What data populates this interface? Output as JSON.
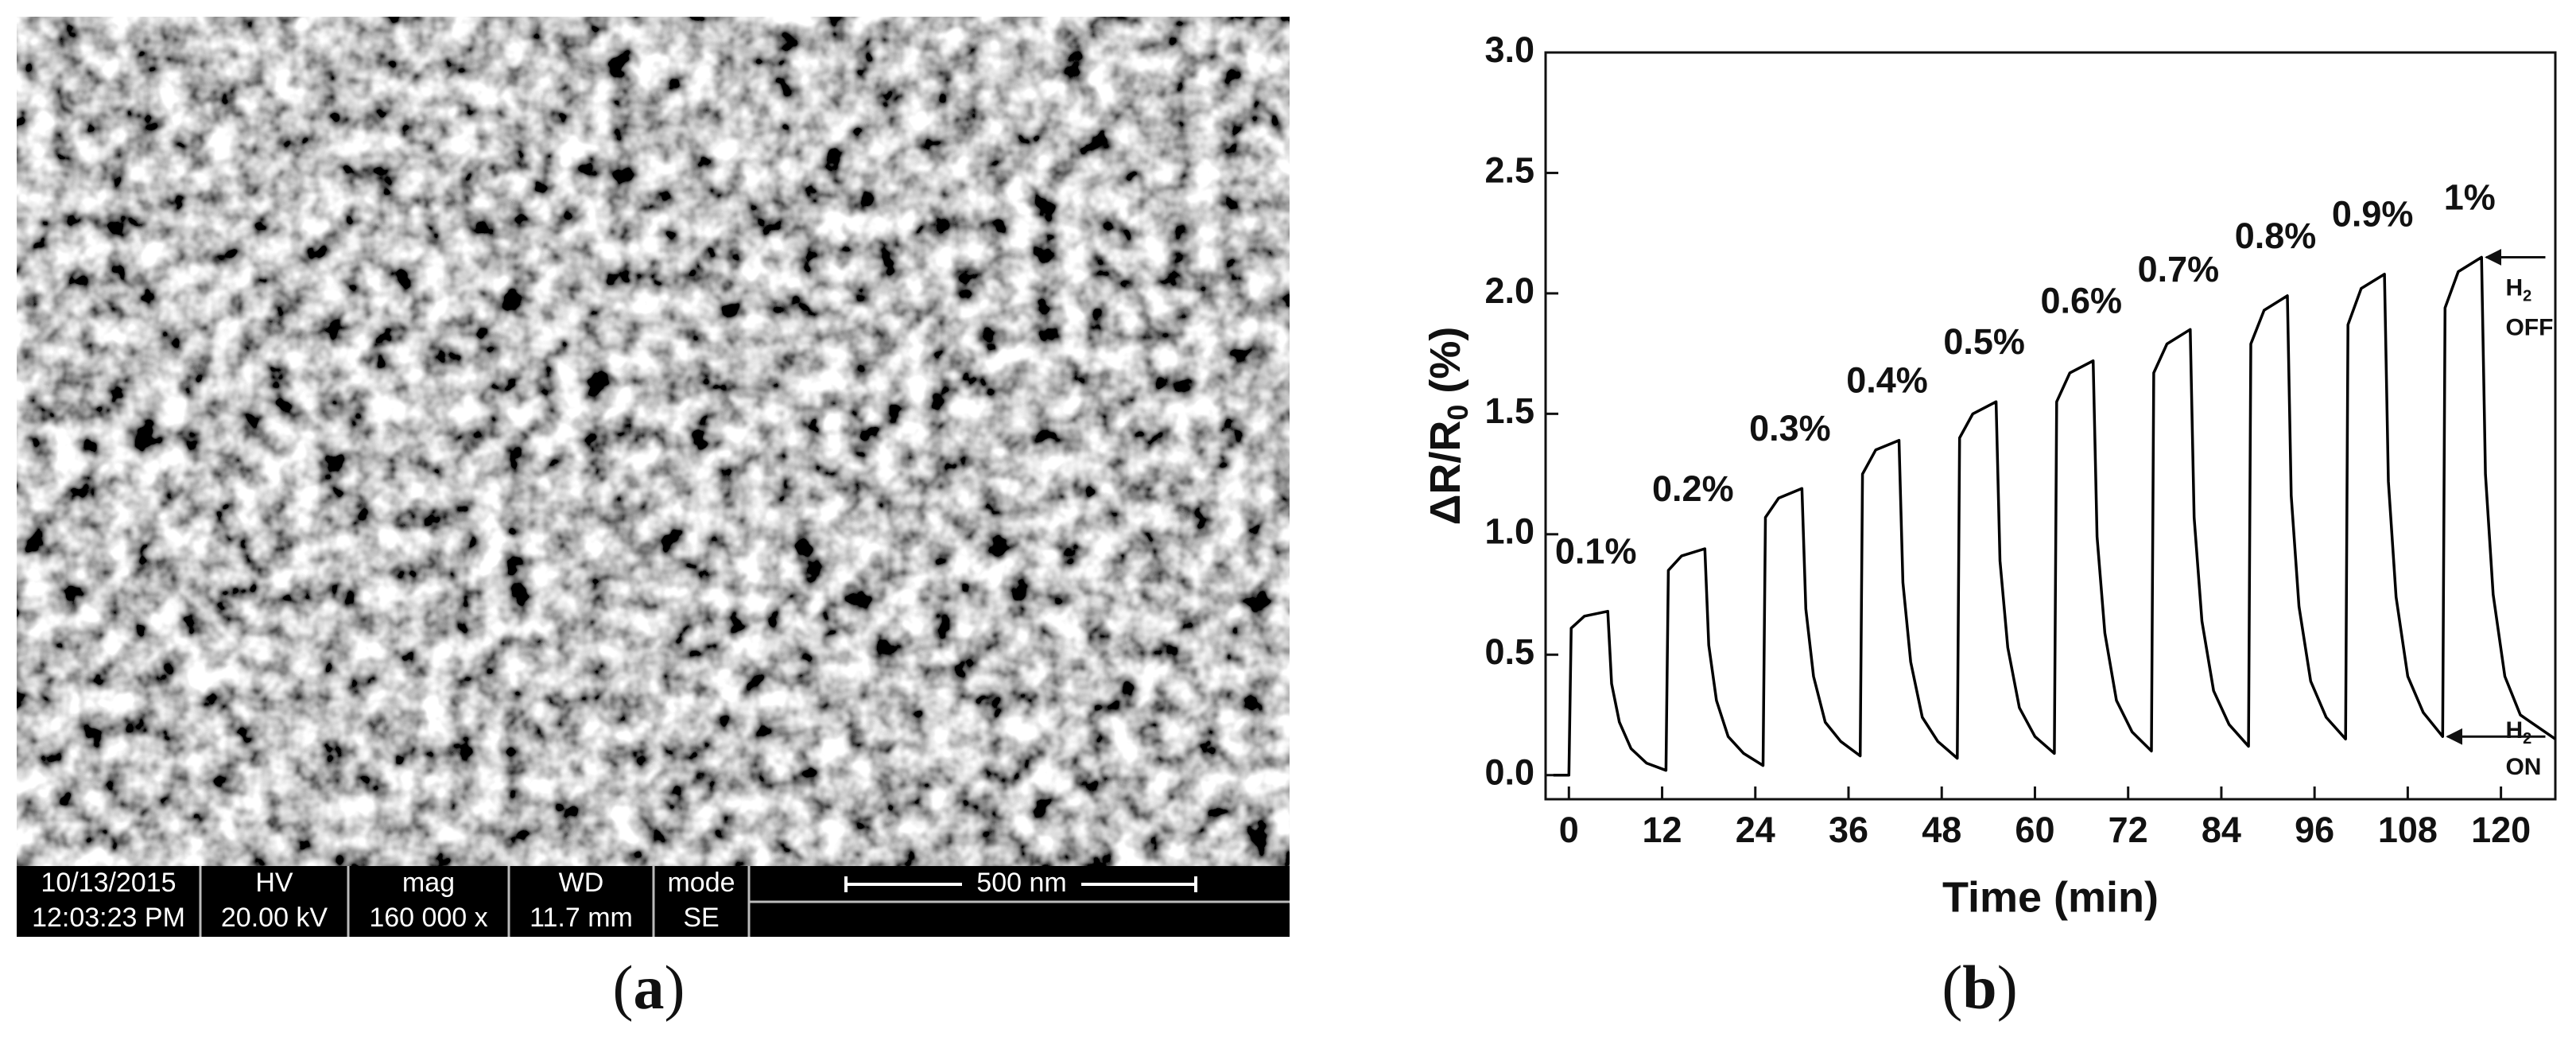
{
  "sem_image": {
    "info_bar": [
      {
        "top": "10/13/2015",
        "bottom": "12:03:23 PM"
      },
      {
        "top": "HV",
        "bottom": "20.00 kV"
      },
      {
        "top": "mag",
        "bottom": "160 000 x"
      },
      {
        "top": "WD",
        "bottom": "11.7 mm"
      },
      {
        "top": "mode",
        "bottom": "SE"
      }
    ],
    "scale_bar": "500 nm"
  },
  "captions": [
    {
      "open": "(",
      "letter": "a",
      "close": ")"
    },
    {
      "open": "(",
      "letter": "b",
      "close": ")"
    }
  ],
  "chart_data": {
    "type": "line",
    "xlabel": "Time (min)",
    "ylabel": {
      "main": "ΔR/R",
      "subscript": "0",
      "unit": "(%)"
    },
    "xlim": [
      -3,
      127
    ],
    "ylim": [
      -0.1,
      3.0
    ],
    "xticks": [
      0,
      12,
      24,
      36,
      48,
      60,
      72,
      84,
      96,
      108,
      120
    ],
    "yticks": [
      {
        "value": 0,
        "label": "0.0"
      },
      0.5,
      {
        "value": 1,
        "label": "1.0"
      },
      1.5,
      {
        "value": 2,
        "label": "2.0"
      },
      2.5,
      {
        "value": 3,
        "label": "3.0"
      }
    ],
    "color": "#000000",
    "x": [
      -2,
      0,
      0.3,
      2,
      5,
      5.5,
      6.5,
      8,
      10,
      12.5,
      12.8,
      14.5,
      17.5,
      18,
      19,
      20.5,
      22.5,
      25,
      25.3,
      27,
      30,
      30.5,
      31.5,
      33,
      35,
      37.5,
      37.8,
      39.5,
      42.5,
      43,
      44,
      45.5,
      47.5,
      50,
      50.3,
      52,
      55,
      55.5,
      56.5,
      58,
      60,
      62.5,
      62.8,
      64.5,
      67.5,
      68,
      69,
      70.5,
      72.5,
      75,
      75.3,
      77,
      80,
      80.5,
      81.5,
      83,
      85,
      87.5,
      87.8,
      89.5,
      92.5,
      93,
      94,
      95.5,
      97.5,
      100,
      100.3,
      102,
      105,
      105.5,
      106.5,
      108,
      110,
      112.5,
      112.8,
      114.5,
      117.5,
      118,
      119,
      120.5,
      122.5,
      127
    ],
    "values": [
      0,
      0,
      0.61,
      0.66,
      0.68,
      0.38,
      0.22,
      0.11,
      0.05,
      0.02,
      0.85,
      0.91,
      0.94,
      0.54,
      0.31,
      0.16,
      0.09,
      0.04,
      1.07,
      1.15,
      1.19,
      0.69,
      0.41,
      0.22,
      0.14,
      0.08,
      1.25,
      1.35,
      1.39,
      0.8,
      0.47,
      0.24,
      0.14,
      0.07,
      1.4,
      1.5,
      1.55,
      0.89,
      0.53,
      0.28,
      0.16,
      0.09,
      1.55,
      1.67,
      1.72,
      0.99,
      0.59,
      0.31,
      0.18,
      0.1,
      1.67,
      1.79,
      1.85,
      1.07,
      0.64,
      0.35,
      0.21,
      0.12,
      1.79,
      1.93,
      1.99,
      1.16,
      0.7,
      0.39,
      0.24,
      0.15,
      1.87,
      2.02,
      2.08,
      1.22,
      0.74,
      0.41,
      0.26,
      0.16,
      1.94,
      2.09,
      2.15,
      1.25,
      0.75,
      0.41,
      0.25,
      0.15
    ],
    "annotations": [
      "0.1%",
      "0.2%",
      "0.3%",
      "0.4%",
      "0.5%",
      "0.6%",
      "0.7%",
      "0.8%",
      "0.9%",
      "1%"
    ],
    "gas_labels": [
      {
        "species": "H",
        "subscript": "2",
        "state": "OFF"
      },
      {
        "species": "H",
        "subscript": "2",
        "state": "ON"
      }
    ]
  }
}
